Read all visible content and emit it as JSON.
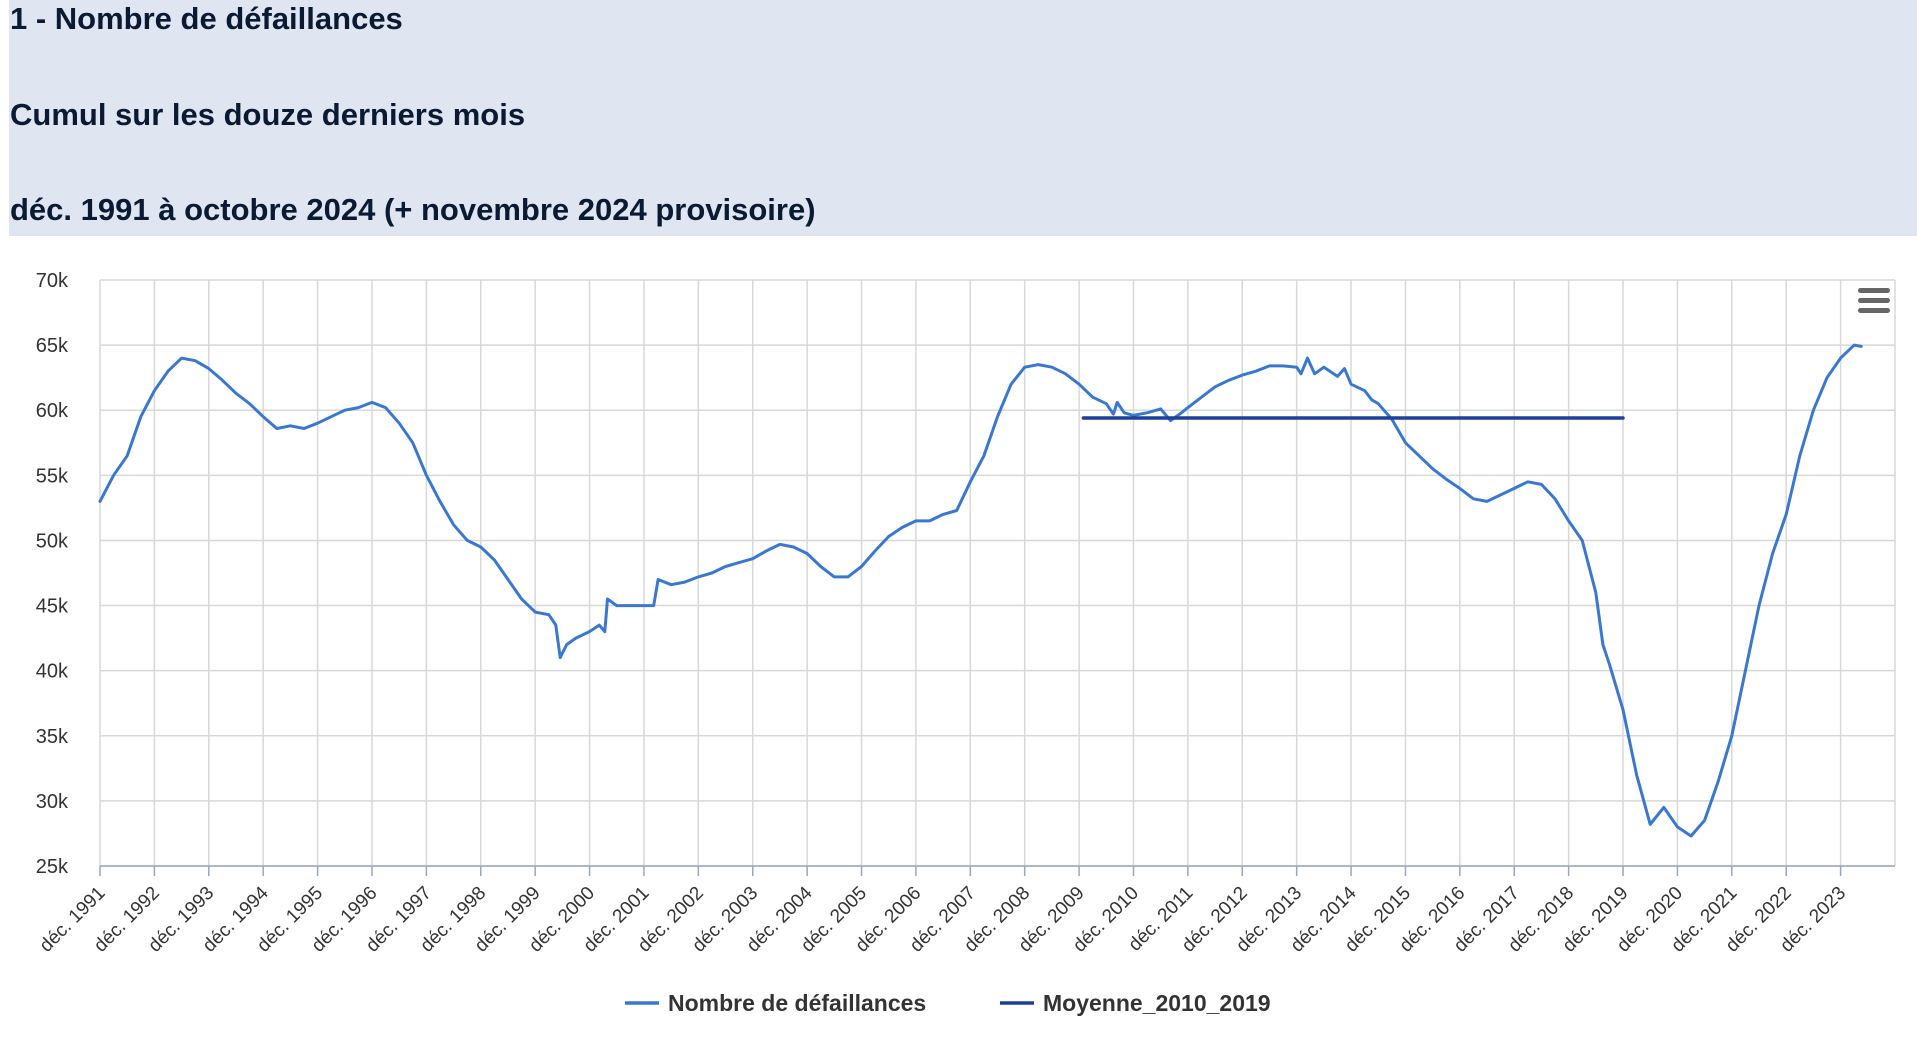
{
  "header": {
    "title": "1 - Nombre de défaillances",
    "subtitle": "Cumul sur les douze derniers mois",
    "period": "déc. 1991 à octobre 2024 (+ novembre 2024 provisoire)"
  },
  "menu_icon": "hamburger-menu-icon",
  "colors": {
    "header_bg": "#dfe6f1",
    "series_main": "#3a78cf",
    "series_mean": "#1f3f99",
    "grid": "#d8d8d8"
  },
  "chart_data": {
    "type": "line",
    "title": "1 - Nombre de défaillances",
    "subtitle": "Cumul sur les douze derniers mois",
    "xlabel": "",
    "ylabel": "",
    "ylim": [
      25000,
      70000
    ],
    "xlim": [
      1991.92,
      2024.92
    ],
    "grid": true,
    "legend_position": "bottom-center",
    "y_ticks": [
      {
        "value": 25000,
        "label": "25k"
      },
      {
        "value": 30000,
        "label": "30k"
      },
      {
        "value": 35000,
        "label": "35k"
      },
      {
        "value": 40000,
        "label": "40k"
      },
      {
        "value": 45000,
        "label": "45k"
      },
      {
        "value": 50000,
        "label": "50k"
      },
      {
        "value": 55000,
        "label": "55k"
      },
      {
        "value": 60000,
        "label": "60k"
      },
      {
        "value": 65000,
        "label": "65k"
      },
      {
        "value": 70000,
        "label": "70k"
      }
    ],
    "x_ticks": [
      {
        "value": 1991.92,
        "label": "déc. 1991"
      },
      {
        "value": 1992.92,
        "label": "déc. 1992"
      },
      {
        "value": 1993.92,
        "label": "déc. 1993"
      },
      {
        "value": 1994.92,
        "label": "déc. 1994"
      },
      {
        "value": 1995.92,
        "label": "déc. 1995"
      },
      {
        "value": 1996.92,
        "label": "déc. 1996"
      },
      {
        "value": 1997.92,
        "label": "déc. 1997"
      },
      {
        "value": 1998.92,
        "label": "déc. 1998"
      },
      {
        "value": 1999.92,
        "label": "déc. 1999"
      },
      {
        "value": 2000.92,
        "label": "déc. 2000"
      },
      {
        "value": 2001.92,
        "label": "déc. 2001"
      },
      {
        "value": 2002.92,
        "label": "déc. 2002"
      },
      {
        "value": 2003.92,
        "label": "déc. 2003"
      },
      {
        "value": 2004.92,
        "label": "déc. 2004"
      },
      {
        "value": 2005.92,
        "label": "déc. 2005"
      },
      {
        "value": 2006.92,
        "label": "déc. 2006"
      },
      {
        "value": 2007.92,
        "label": "déc. 2007"
      },
      {
        "value": 2008.92,
        "label": "déc. 2008"
      },
      {
        "value": 2009.92,
        "label": "déc. 2009"
      },
      {
        "value": 2010.92,
        "label": "déc. 2010"
      },
      {
        "value": 2011.92,
        "label": "déc. 2011"
      },
      {
        "value": 2012.92,
        "label": "déc. 2012"
      },
      {
        "value": 2013.92,
        "label": "déc. 2013"
      },
      {
        "value": 2014.92,
        "label": "déc. 2014"
      },
      {
        "value": 2015.92,
        "label": "déc. 2015"
      },
      {
        "value": 2016.92,
        "label": "déc. 2016"
      },
      {
        "value": 2017.92,
        "label": "déc. 2017"
      },
      {
        "value": 2018.92,
        "label": "déc. 2018"
      },
      {
        "value": 2019.92,
        "label": "déc. 2019"
      },
      {
        "value": 2020.92,
        "label": "déc. 2020"
      },
      {
        "value": 2021.92,
        "label": "déc. 2021"
      },
      {
        "value": 2022.92,
        "label": "déc. 2022"
      },
      {
        "value": 2023.92,
        "label": "déc. 2023"
      }
    ],
    "series": [
      {
        "name": "Nombre de défaillances",
        "color": "#3a78cf",
        "points": [
          [
            1991.92,
            53000
          ],
          [
            1992.17,
            55000
          ],
          [
            1992.42,
            56500
          ],
          [
            1992.67,
            59500
          ],
          [
            1992.92,
            61500
          ],
          [
            1993.17,
            63000
          ],
          [
            1993.42,
            64000
          ],
          [
            1993.67,
            63800
          ],
          [
            1993.92,
            63200
          ],
          [
            1994.17,
            62300
          ],
          [
            1994.42,
            61300
          ],
          [
            1994.67,
            60500
          ],
          [
            1994.92,
            59500
          ],
          [
            1995.17,
            58600
          ],
          [
            1995.42,
            58800
          ],
          [
            1995.67,
            58600
          ],
          [
            1995.92,
            59000
          ],
          [
            1996.17,
            59500
          ],
          [
            1996.42,
            60000
          ],
          [
            1996.67,
            60200
          ],
          [
            1996.92,
            60600
          ],
          [
            1997.17,
            60200
          ],
          [
            1997.42,
            59000
          ],
          [
            1997.67,
            57500
          ],
          [
            1997.92,
            55000
          ],
          [
            1998.17,
            53000
          ],
          [
            1998.42,
            51200
          ],
          [
            1998.67,
            50000
          ],
          [
            1998.92,
            49500
          ],
          [
            1999.17,
            48500
          ],
          [
            1999.42,
            47000
          ],
          [
            1999.67,
            45500
          ],
          [
            1999.92,
            44500
          ],
          [
            2000.17,
            44300
          ],
          [
            2000.3,
            43500
          ],
          [
            2000.38,
            41000
          ],
          [
            2000.5,
            42000
          ],
          [
            2000.67,
            42500
          ],
          [
            2000.92,
            43000
          ],
          [
            2001.1,
            43500
          ],
          [
            2001.2,
            43000
          ],
          [
            2001.25,
            45500
          ],
          [
            2001.42,
            45000
          ],
          [
            2001.67,
            45000
          ],
          [
            2001.92,
            45000
          ],
          [
            2002.1,
            45000
          ],
          [
            2002.18,
            47000
          ],
          [
            2002.42,
            46600
          ],
          [
            2002.67,
            46800
          ],
          [
            2002.92,
            47200
          ],
          [
            2003.17,
            47500
          ],
          [
            2003.42,
            48000
          ],
          [
            2003.67,
            48300
          ],
          [
            2003.92,
            48600
          ],
          [
            2004.17,
            49200
          ],
          [
            2004.42,
            49700
          ],
          [
            2004.67,
            49500
          ],
          [
            2004.92,
            49000
          ],
          [
            2005.17,
            48000
          ],
          [
            2005.42,
            47200
          ],
          [
            2005.67,
            47200
          ],
          [
            2005.92,
            48000
          ],
          [
            2006.17,
            49200
          ],
          [
            2006.42,
            50300
          ],
          [
            2006.67,
            51000
          ],
          [
            2006.92,
            51500
          ],
          [
            2007.17,
            51500
          ],
          [
            2007.42,
            52000
          ],
          [
            2007.67,
            52300
          ],
          [
            2007.92,
            54500
          ],
          [
            2008.17,
            56500
          ],
          [
            2008.42,
            59500
          ],
          [
            2008.67,
            62000
          ],
          [
            2008.92,
            63300
          ],
          [
            2009.17,
            63500
          ],
          [
            2009.42,
            63300
          ],
          [
            2009.67,
            62800
          ],
          [
            2009.92,
            62000
          ],
          [
            2010.17,
            61000
          ],
          [
            2010.42,
            60500
          ],
          [
            2010.55,
            59700
          ],
          [
            2010.62,
            60600
          ],
          [
            2010.75,
            59800
          ],
          [
            2010.92,
            59600
          ],
          [
            2011.17,
            59800
          ],
          [
            2011.42,
            60100
          ],
          [
            2011.6,
            59200
          ],
          [
            2011.8,
            59800
          ],
          [
            2011.92,
            60200
          ],
          [
            2012.17,
            61000
          ],
          [
            2012.42,
            61800
          ],
          [
            2012.67,
            62300
          ],
          [
            2012.92,
            62700
          ],
          [
            2013.17,
            63000
          ],
          [
            2013.42,
            63400
          ],
          [
            2013.67,
            63400
          ],
          [
            2013.92,
            63300
          ],
          [
            2014.0,
            62800
          ],
          [
            2014.12,
            64000
          ],
          [
            2014.25,
            62800
          ],
          [
            2014.42,
            63300
          ],
          [
            2014.67,
            62600
          ],
          [
            2014.8,
            63200
          ],
          [
            2014.92,
            62000
          ],
          [
            2015.17,
            61500
          ],
          [
            2015.3,
            60800
          ],
          [
            2015.42,
            60500
          ],
          [
            2015.67,
            59300
          ],
          [
            2015.92,
            57500
          ],
          [
            2016.17,
            56500
          ],
          [
            2016.42,
            55500
          ],
          [
            2016.67,
            54700
          ],
          [
            2016.92,
            54000
          ],
          [
            2017.17,
            53200
          ],
          [
            2017.42,
            53000
          ],
          [
            2017.67,
            53500
          ],
          [
            2017.92,
            54000
          ],
          [
            2018.17,
            54500
          ],
          [
            2018.42,
            54300
          ],
          [
            2018.67,
            53200
          ],
          [
            2018.92,
            51500
          ],
          [
            2019.17,
            50000
          ],
          [
            2019.42,
            46000
          ],
          [
            2019.55,
            42000
          ],
          [
            2019.67,
            40500
          ],
          [
            2019.92,
            37000
          ],
          [
            2020.17,
            32000
          ],
          [
            2020.42,
            28200
          ],
          [
            2020.67,
            29500
          ],
          [
            2020.92,
            28000
          ],
          [
            2021.17,
            27300
          ],
          [
            2021.42,
            28500
          ],
          [
            2021.67,
            31500
          ],
          [
            2021.92,
            35000
          ],
          [
            2022.17,
            40000
          ],
          [
            2022.42,
            45000
          ],
          [
            2022.67,
            49000
          ],
          [
            2022.92,
            52000
          ],
          [
            2023.17,
            56500
          ],
          [
            2023.42,
            60000
          ],
          [
            2023.67,
            62500
          ],
          [
            2023.92,
            64000
          ],
          [
            2024.17,
            65000
          ],
          [
            2024.3,
            64900
          ]
        ]
      },
      {
        "name": "Moyenne_2010_2019",
        "color": "#1f3f99",
        "points": [
          [
            2010.0,
            59400
          ],
          [
            2019.92,
            59400
          ]
        ]
      }
    ]
  }
}
